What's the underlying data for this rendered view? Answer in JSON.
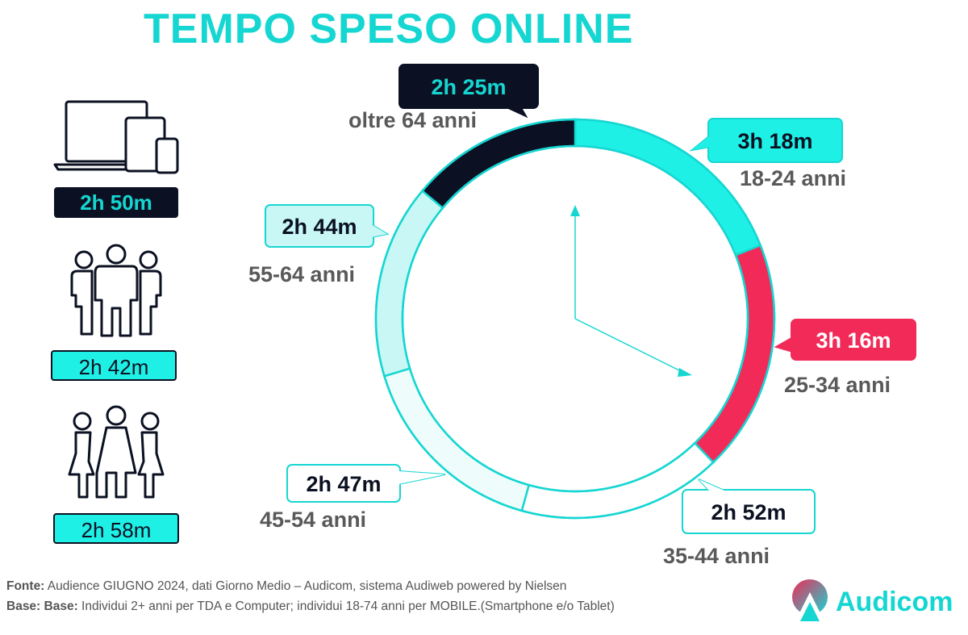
{
  "title": "TEMPO SPESO ONLINE",
  "summary": {
    "devices_total": "2h 50m",
    "men": "2h 42m",
    "women": "2h 58m"
  },
  "chart_data": {
    "type": "pie",
    "title": "TEMPO SPESO ONLINE",
    "categories": [
      "18-24 anni",
      "25-34 anni",
      "35-44 anni",
      "45-54 anni",
      "55-64 anni",
      "oltre 64 anni"
    ],
    "labels": [
      "3h 18m",
      "3h 16m",
      "2h 52m",
      "2h 47m",
      "2h 44m",
      "2h 25m"
    ],
    "values": [
      198,
      196,
      172,
      167,
      164,
      145
    ],
    "unit": "minuti",
    "colors": [
      "#1ff0e6",
      "#f22a58",
      "#ffffff",
      "#eefcfc",
      "#c8f7f6",
      "#0b1122"
    ],
    "label_colors": {
      "box_fill": [
        "#1ff0e6",
        "#f22a58",
        "#ffffff",
        "#ffffff",
        "#c8f7f6",
        "#0b1122"
      ],
      "box_text": [
        "#0b1122",
        "#ffffff",
        "#0b1122",
        "#0b1122",
        "#0b1122",
        "#16d6d2"
      ]
    }
  },
  "footer": {
    "fonte_label": "Fonte:",
    "fonte_text": " Audience GIUGNO 2024, dati Giorno Medio – Audicom, sistema Audiweb powered by Nielsen",
    "base_label": "Base:  Base:",
    "base_text": "  Individui 2+ anni per TDA e Computer; individui 18-74 anni per MOBILE.(Smartphone e/o Tablet)"
  },
  "brand": {
    "name": "Audicom",
    "accent": "#16d6d2",
    "dark": "#0b1122",
    "highlight": "#f22a58"
  }
}
